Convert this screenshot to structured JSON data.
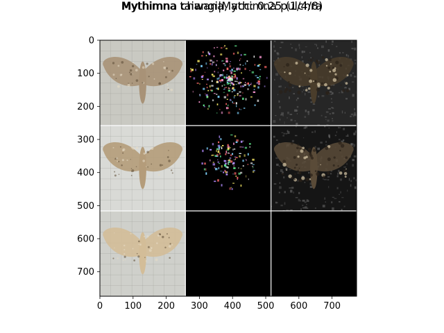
{
  "figure": {
    "title_line1": "Mythimna taiwana, acc: 0.25 (1/4/8)",
    "title_line2": "Mythimna changi|Mythimna pulchra",
    "background": "#ffffff",
    "separator_color": "#ffffff"
  },
  "axes": {
    "x_ticks": [
      0,
      100,
      200,
      300,
      400,
      500,
      600,
      700
    ],
    "y_ticks": [
      0,
      100,
      200,
      300,
      400,
      500,
      600,
      700
    ],
    "x_range": [
      0,
      774
    ],
    "y_range": [
      0,
      774
    ]
  },
  "grid": {
    "rows": 3,
    "cols": 3,
    "cells": [
      {
        "row": 0,
        "col": 0,
        "kind": "photo",
        "bg": "#c9c9c2",
        "moth": "#a89277"
      },
      {
        "row": 0,
        "col": 1,
        "kind": "saliency-color",
        "bg": "#000000"
      },
      {
        "row": 0,
        "col": 2,
        "kind": "masked-photo",
        "bg": "#262626",
        "moth": "#4a3d2b"
      },
      {
        "row": 1,
        "col": 0,
        "kind": "photo",
        "bg": "#d9dad6",
        "moth": "#b49c7a"
      },
      {
        "row": 1,
        "col": 1,
        "kind": "saliency-color",
        "bg": "#000000"
      },
      {
        "row": 1,
        "col": 2,
        "kind": "masked-photo",
        "bg": "#151515",
        "moth": "#5a4b38"
      },
      {
        "row": 2,
        "col": 0,
        "kind": "photo",
        "bg": "#cfd0cb",
        "moth": "#d3bd98"
      },
      {
        "row": 2,
        "col": 1,
        "kind": "empty",
        "bg": "#000000"
      },
      {
        "row": 2,
        "col": 2,
        "kind": "empty",
        "bg": "#000000"
      }
    ]
  }
}
